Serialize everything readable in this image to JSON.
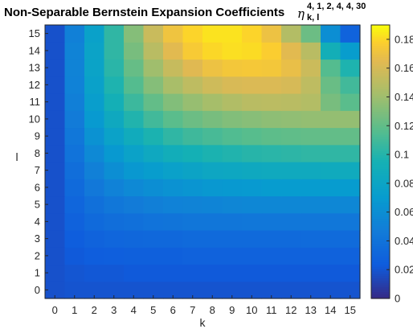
{
  "chart_data": {
    "type": "heatmap",
    "title": "Non-Separable Bernstein Expansion Coefficients",
    "title_symbol": "η",
    "title_superscript": "4, 1, 2, 4, 4, 30",
    "title_subscript": "k, l",
    "xlabel": "k",
    "ylabel": "l",
    "x_categories": [
      "0",
      "1",
      "2",
      "3",
      "4",
      "5",
      "6",
      "7",
      "8",
      "9",
      "10",
      "11",
      "12",
      "13",
      "14",
      "15"
    ],
    "y_categories": [
      "0",
      "1",
      "2",
      "3",
      "4",
      "5",
      "6",
      "7",
      "8",
      "9",
      "10",
      "11",
      "12",
      "13",
      "14",
      "15"
    ],
    "colormap": "parula",
    "clim": [
      0,
      0.19
    ],
    "colorbar_ticks": [
      "0",
      "0.02",
      "0.04",
      "0.06",
      "0.08",
      "0.1",
      "0.12",
      "0.14",
      "0.16",
      "0.18"
    ],
    "values_note": "rows listed from l=0 (bottom) to l=15 (top); columns k=0..15",
    "values": [
      [
        0.018,
        0.019,
        0.019,
        0.019,
        0.019,
        0.019,
        0.019,
        0.019,
        0.019,
        0.019,
        0.019,
        0.019,
        0.019,
        0.019,
        0.019,
        0.019
      ],
      [
        0.018,
        0.02,
        0.021,
        0.021,
        0.022,
        0.022,
        0.022,
        0.022,
        0.022,
        0.022,
        0.022,
        0.022,
        0.022,
        0.022,
        0.022,
        0.022
      ],
      [
        0.018,
        0.022,
        0.024,
        0.025,
        0.026,
        0.026,
        0.026,
        0.027,
        0.027,
        0.027,
        0.027,
        0.027,
        0.027,
        0.027,
        0.027,
        0.027
      ],
      [
        0.018,
        0.024,
        0.028,
        0.03,
        0.031,
        0.032,
        0.032,
        0.033,
        0.033,
        0.033,
        0.033,
        0.033,
        0.033,
        0.034,
        0.034,
        0.034
      ],
      [
        0.018,
        0.027,
        0.033,
        0.036,
        0.038,
        0.04,
        0.041,
        0.042,
        0.042,
        0.042,
        0.043,
        0.043,
        0.043,
        0.043,
        0.043,
        0.043
      ],
      [
        0.018,
        0.03,
        0.038,
        0.043,
        0.046,
        0.049,
        0.051,
        0.052,
        0.053,
        0.054,
        0.055,
        0.055,
        0.055,
        0.055,
        0.055,
        0.055
      ],
      [
        0.018,
        0.033,
        0.044,
        0.051,
        0.056,
        0.06,
        0.063,
        0.065,
        0.067,
        0.068,
        0.069,
        0.07,
        0.07,
        0.07,
        0.07,
        0.07
      ],
      [
        0.018,
        0.036,
        0.05,
        0.06,
        0.067,
        0.072,
        0.076,
        0.079,
        0.082,
        0.083,
        0.085,
        0.086,
        0.086,
        0.086,
        0.087,
        0.087
      ],
      [
        0.018,
        0.04,
        0.056,
        0.068,
        0.077,
        0.084,
        0.09,
        0.094,
        0.097,
        0.099,
        0.101,
        0.102,
        0.103,
        0.104,
        0.104,
        0.104
      ],
      [
        0.018,
        0.043,
        0.063,
        0.077,
        0.088,
        0.097,
        0.104,
        0.109,
        0.112,
        0.115,
        0.117,
        0.119,
        0.12,
        0.121,
        0.121,
        0.121
      ],
      [
        0.018,
        0.046,
        0.069,
        0.085,
        0.099,
        0.11,
        0.118,
        0.124,
        0.128,
        0.131,
        0.133,
        0.135,
        0.136,
        0.137,
        0.137,
        0.137
      ],
      [
        0.018,
        0.049,
        0.073,
        0.093,
        0.108,
        0.121,
        0.131,
        0.138,
        0.143,
        0.147,
        0.15,
        0.151,
        0.15,
        0.148,
        0.128,
        0.118
      ],
      [
        0.018,
        0.051,
        0.076,
        0.098,
        0.116,
        0.132,
        0.144,
        0.152,
        0.158,
        0.162,
        0.163,
        0.163,
        0.161,
        0.152,
        0.123,
        0.11
      ],
      [
        0.018,
        0.052,
        0.078,
        0.102,
        0.122,
        0.141,
        0.155,
        0.165,
        0.171,
        0.174,
        0.175,
        0.174,
        0.169,
        0.157,
        0.116,
        0.098
      ],
      [
        0.018,
        0.052,
        0.078,
        0.104,
        0.128,
        0.15,
        0.166,
        0.176,
        0.181,
        0.183,
        0.182,
        0.178,
        0.166,
        0.15,
        0.092,
        0.072
      ],
      [
        0.018,
        0.05,
        0.076,
        0.104,
        0.132,
        0.156,
        0.172,
        0.18,
        0.184,
        0.184,
        0.18,
        0.171,
        0.148,
        0.124,
        0.06,
        0.028
      ]
    ]
  }
}
